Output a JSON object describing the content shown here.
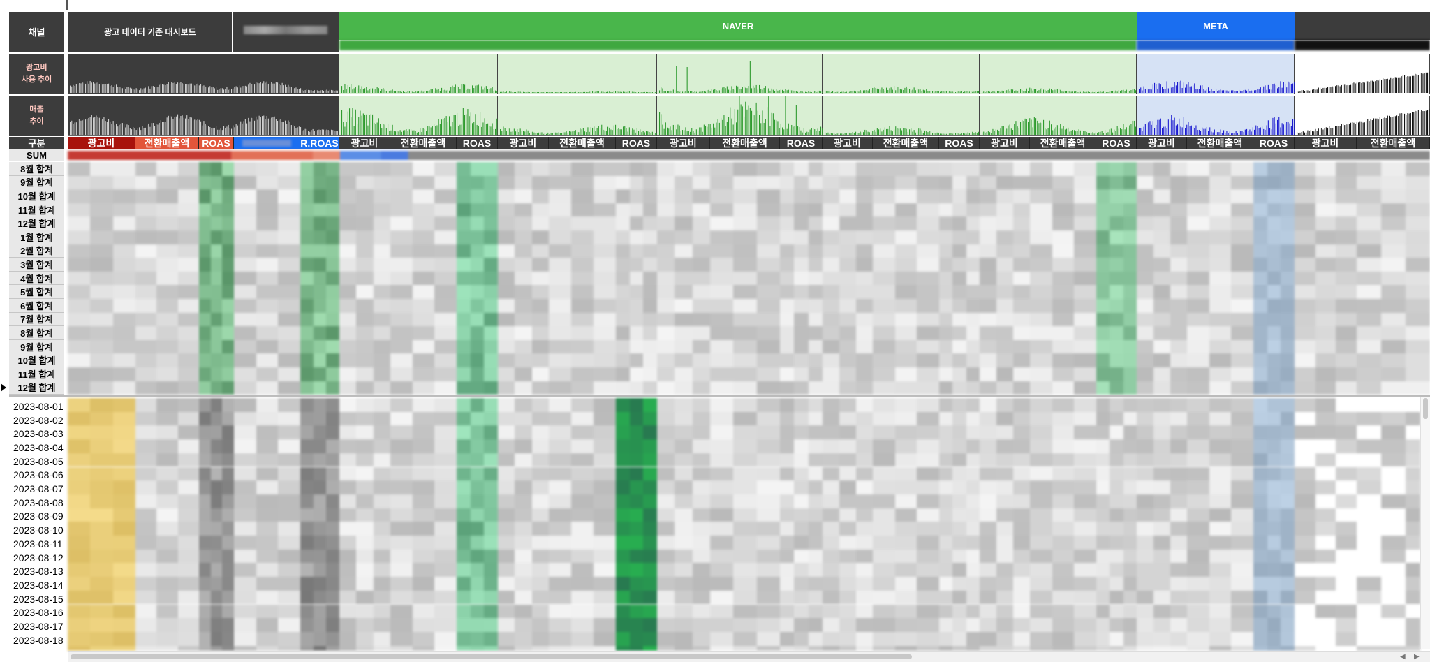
{
  "header": {
    "channel_label": "채널",
    "dashboard_title": "광고 데이터 기준 대시보드",
    "naver_label": "NAVER",
    "meta_label": "META"
  },
  "chart_labels": {
    "spend_trend": "광고비\n사용 추이",
    "revenue_trend": "매출\n추이"
  },
  "colors": {
    "naver_green": "#49b64b",
    "meta_blue": "#1a6ef0",
    "total_red": "#a8120c",
    "total_orange": "#e2553a",
    "light_green_panel": "#d9efd3",
    "light_blue_panel": "#d6e2f5"
  },
  "column_row": {
    "label": "구분",
    "total_cols": [
      "광고비",
      "전환매출액",
      "ROAS"
    ],
    "rroas": "R.ROAS",
    "group_cols": [
      "광고비",
      "전환매출액",
      "ROAS"
    ]
  },
  "sum_label": "SUM",
  "monthly_rows": [
    "8월 합계",
    "9월 합계",
    "10월 합계",
    "11월 합계",
    "12월 합계",
    "1월 합계",
    "2월 합계",
    "3월 합계",
    "4월 합계",
    "5월 합계",
    "6월 합계",
    "7월 합계",
    "8월 합계",
    "9월 합계",
    "10월 합계",
    "11월 합계",
    "12월 합계"
  ],
  "daily_rows": [
    "2023-08-01",
    "2023-08-02",
    "2023-08-03",
    "2023-08-04",
    "2023-08-05",
    "2023-08-06",
    "2023-08-07",
    "2023-08-08",
    "2023-08-09",
    "2023-08-10",
    "2023-08-11",
    "2023-08-12",
    "2023-08-13",
    "2023-08-14",
    "2023-08-15",
    "2023-08-16",
    "2023-08-17",
    "2023-08-18"
  ],
  "icons": {
    "row_marker": "triangle-right-icon",
    "scroll_left": "arrow-left-icon",
    "scroll_right": "arrow-right-icon"
  }
}
